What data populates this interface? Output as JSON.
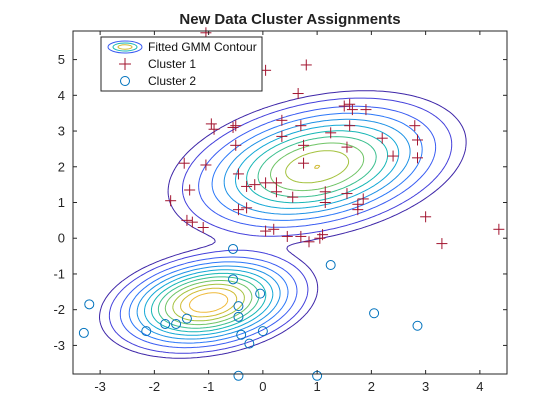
{
  "chart_data": {
    "type": "scatter",
    "title": "New Data Cluster Assignments",
    "xlabel": "",
    "ylabel": "",
    "xlim": [
      -3.5,
      4.5
    ],
    "ylim": [
      -3.8,
      5.8
    ],
    "xticks": [
      -3,
      -2,
      -1,
      0,
      1,
      2,
      3,
      4
    ],
    "yticks": [
      -3,
      -2,
      -1,
      0,
      1,
      2,
      3,
      4,
      5
    ],
    "grid": false,
    "legend": {
      "location": "top-left",
      "entries": [
        {
          "label": "Fitted GMM Contour",
          "marker": "contour-ellipse"
        },
        {
          "label": "Cluster 1",
          "marker": "+",
          "color": "#A2142F"
        },
        {
          "label": "Cluster 2",
          "marker": "o",
          "color": "#0072BD"
        }
      ]
    },
    "contour": {
      "components": [
        {
          "weight": 0.6,
          "mean": [
            1.0,
            2.0
          ],
          "cov": [
            [
              1.0,
              0.25
            ],
            [
              0.25,
              0.6
            ]
          ]
        },
        {
          "weight": 0.4,
          "mean": [
            -1.0,
            -1.8
          ],
          "cov": [
            [
              0.5,
              0.1
            ],
            [
              0.1,
              0.3
            ]
          ]
        }
      ],
      "levels": [
        0.003,
        0.006,
        0.012,
        0.02,
        0.03,
        0.042,
        0.056,
        0.072,
        0.09,
        0.11,
        0.13,
        0.15,
        0.175
      ],
      "colors": [
        "#3E26A8",
        "#4440DB",
        "#3A5CF2",
        "#2A77F9",
        "#1C91E5",
        "#12A8D6",
        "#15B6B5",
        "#3BBF8F",
        "#6FC466",
        "#A4C23E",
        "#CFBA31",
        "#EFBA3A",
        "#FBD12C"
      ]
    },
    "series": [
      {
        "name": "Cluster 1",
        "marker": "+",
        "color": "#A2142F",
        "points": [
          [
            -1.05,
            5.75
          ],
          [
            0.05,
            4.7
          ],
          [
            0.8,
            4.85
          ],
          [
            0.65,
            4.05
          ],
          [
            1.5,
            3.7
          ],
          [
            1.6,
            3.75
          ],
          [
            1.65,
            3.6
          ],
          [
            1.9,
            3.6
          ],
          [
            -0.95,
            3.2
          ],
          [
            -0.9,
            3.05
          ],
          [
            -0.55,
            3.1
          ],
          [
            -0.5,
            3.15
          ],
          [
            0.35,
            3.3
          ],
          [
            0.7,
            3.15
          ],
          [
            1.6,
            3.15
          ],
          [
            2.8,
            3.15
          ],
          [
            0.35,
            2.85
          ],
          [
            1.25,
            2.95
          ],
          [
            2.2,
            2.8
          ],
          [
            2.85,
            2.75
          ],
          [
            -1.45,
            2.1
          ],
          [
            -1.05,
            2.05
          ],
          [
            0.75,
            2.6
          ],
          [
            1.55,
            2.55
          ],
          [
            2.4,
            2.3
          ],
          [
            2.85,
            2.25
          ],
          [
            0.75,
            2.1
          ],
          [
            -0.5,
            2.6
          ],
          [
            -0.45,
            1.8
          ],
          [
            -0.3,
            1.45
          ],
          [
            -0.15,
            1.5
          ],
          [
            0.05,
            1.55
          ],
          [
            0.25,
            1.3
          ],
          [
            0.55,
            1.15
          ],
          [
            0.25,
            1.55
          ],
          [
            1.15,
            1.3
          ],
          [
            1.55,
            1.25
          ],
          [
            1.85,
            1.1
          ],
          [
            1.75,
            0.8
          ],
          [
            1.75,
            0.95
          ],
          [
            -1.7,
            1.05
          ],
          [
            -1.35,
            1.35
          ],
          [
            -0.3,
            0.85
          ],
          [
            -0.45,
            0.8
          ],
          [
            -1.4,
            0.5
          ],
          [
            -1.3,
            0.45
          ],
          [
            -1.1,
            0.3
          ],
          [
            0.05,
            0.2
          ],
          [
            0.2,
            0.25
          ],
          [
            0.45,
            0.05
          ],
          [
            0.7,
            0.05
          ],
          [
            0.85,
            -0.1
          ],
          [
            1.05,
            0.0
          ],
          [
            1.1,
            0.1
          ],
          [
            3.0,
            0.6
          ],
          [
            3.3,
            -0.15
          ],
          [
            4.35,
            0.25
          ],
          [
            1.15,
            1.0
          ]
        ]
      },
      {
        "name": "Cluster 2",
        "marker": "o",
        "color": "#0072BD",
        "points": [
          [
            -0.55,
            -0.3
          ],
          [
            1.25,
            -0.75
          ],
          [
            -0.55,
            -1.15
          ],
          [
            -0.05,
            -1.55
          ],
          [
            -0.45,
            -1.9
          ],
          [
            -0.45,
            -2.2
          ],
          [
            -1.4,
            -2.25
          ],
          [
            -1.6,
            -2.4
          ],
          [
            -1.8,
            -2.4
          ],
          [
            -2.15,
            -2.6
          ],
          [
            0.0,
            -2.6
          ],
          [
            -0.4,
            -2.7
          ],
          [
            -0.25,
            -2.95
          ],
          [
            -3.2,
            -1.85
          ],
          [
            -3.3,
            -2.65
          ],
          [
            2.05,
            -2.1
          ],
          [
            2.85,
            -2.45
          ],
          [
            -0.45,
            -3.85
          ],
          [
            1.0,
            -3.85
          ]
        ]
      }
    ]
  }
}
